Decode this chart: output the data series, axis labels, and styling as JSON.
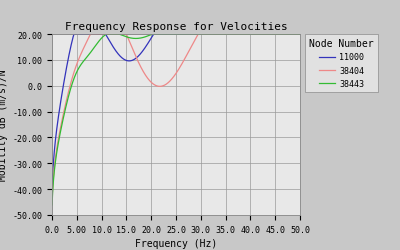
{
  "title": "Frequency Response for Velocities",
  "xlabel": "Frequency (Hz)",
  "ylabel": "Mobility dB (m/s)/N",
  "xlim": [
    0.0,
    50.0
  ],
  "ylim": [
    -50.0,
    20.0
  ],
  "ytick_vals": [
    20.0,
    10.0,
    0.0,
    -10.0,
    -20.0,
    -30.0,
    -40.0,
    -50.0
  ],
  "ytick_labels": [
    "20.00",
    "10.00",
    "0.0",
    "-10.00",
    "-20.00",
    "-30.00",
    "-40.00",
    "-50.00"
  ],
  "xtick_vals": [
    0.0,
    5.0,
    10.0,
    15.0,
    20.0,
    25.0,
    30.0,
    35.0,
    40.0,
    45.0,
    50.0
  ],
  "xtick_labels": [
    "0.0",
    "5.00",
    "10.0",
    "15.0",
    "20.0",
    "25.0",
    "30.0",
    "35.0",
    "40.0",
    "45.0",
    "50.0"
  ],
  "legend_title": "Node Number",
  "series": [
    {
      "label": "11000",
      "color": "#3333bb"
    },
    {
      "label": "38404",
      "color": "#ee8888"
    },
    {
      "label": "38443",
      "color": "#33bb33"
    }
  ],
  "fig_bg": "#c8c8c8",
  "plot_bg": "#e8e8e8",
  "grid_color": "#999999",
  "title_fontsize": 8,
  "axis_label_fontsize": 7,
  "tick_fontsize": 6,
  "legend_fontsize": 6,
  "line_width": 0.9
}
